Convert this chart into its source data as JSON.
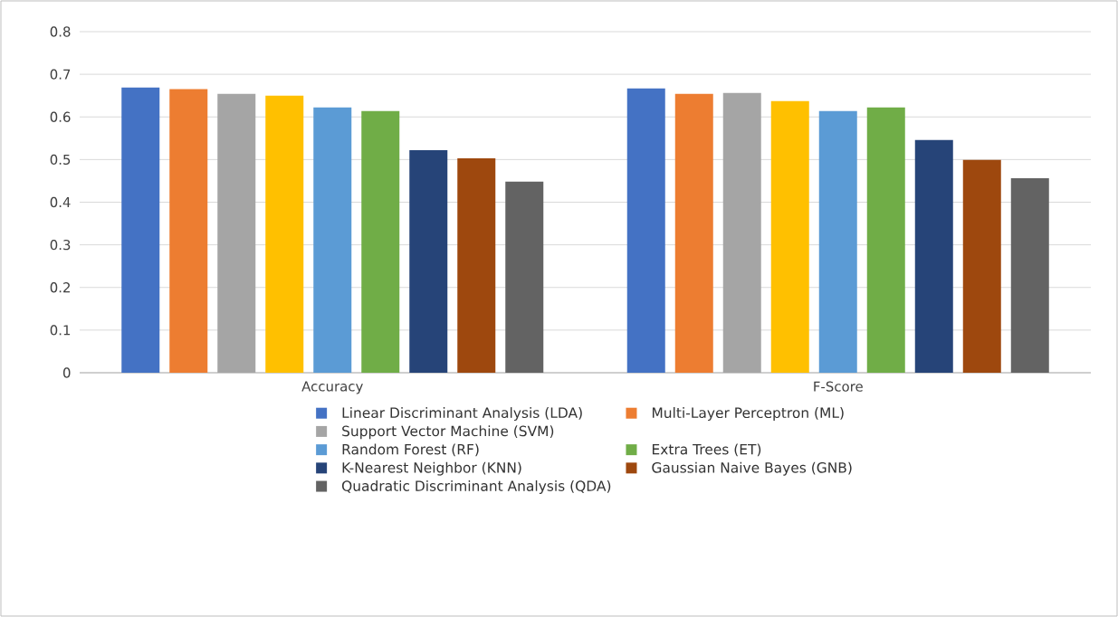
{
  "chart_data": {
    "type": "bar",
    "categories": [
      "Accuracy",
      "F-Score"
    ],
    "series": [
      {
        "name": "Linear Discriminant Analysis (LDA)",
        "color": "#4472c4",
        "values": [
          0.669,
          0.667
        ]
      },
      {
        "name": "Multi-Layer Perceptron (ML)",
        "color": "#ed7d31",
        "values": [
          0.665,
          0.654
        ]
      },
      {
        "name": "Support Vector Machine (SVM)",
        "color": "#a5a5a5",
        "values": [
          0.654,
          0.656
        ]
      },
      {
        "color": "#ffc000",
        "values": [
          0.65,
          0.637
        ]
      },
      {
        "name": "Random Forest (RF)",
        "color": "#5b9bd5",
        "values": [
          0.622,
          0.614
        ]
      },
      {
        "name": "Extra Trees (ET)",
        "color": "#70ad47",
        "values": [
          0.614,
          0.622
        ]
      },
      {
        "name": "K-Nearest Neighbor (KNN)",
        "color": "#264478",
        "values": [
          0.522,
          0.546
        ]
      },
      {
        "name": "Gaussian Naive Bayes (GNB)",
        "color": "#9e480e",
        "values": [
          0.503,
          0.499
        ]
      },
      {
        "name": "Quadratic Discriminant Analysis (QDA)",
        "color": "#636363",
        "values": [
          0.448,
          0.456
        ]
      }
    ],
    "ylim": [
      0,
      0.8
    ],
    "yticks": [
      0,
      0.1,
      0.2,
      0.3,
      0.4,
      0.5,
      0.6,
      0.7,
      0.8
    ],
    "grid": "y",
    "legend": "bottom"
  }
}
